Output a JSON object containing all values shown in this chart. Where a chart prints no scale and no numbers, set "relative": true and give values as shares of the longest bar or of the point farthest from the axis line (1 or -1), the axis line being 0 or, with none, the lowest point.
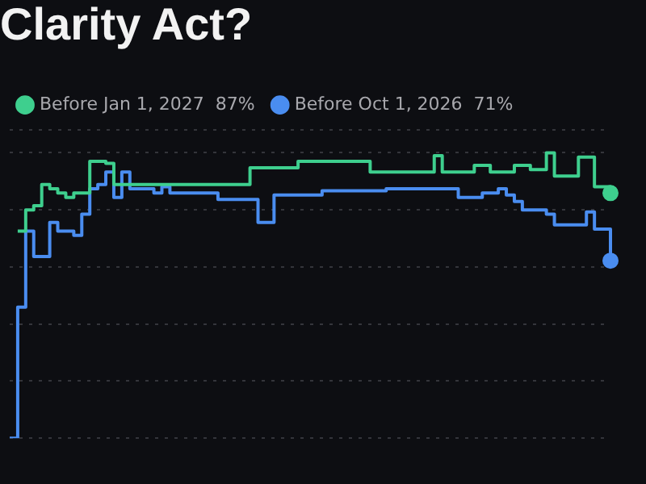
{
  "chart_data": {
    "type": "step",
    "title": "Clarity Act?",
    "relative": true,
    "categories": [
      null,
      null,
      null,
      null,
      null,
      null,
      null,
      null,
      null,
      null,
      null,
      null,
      null,
      null,
      null,
      null,
      null,
      null,
      null,
      null,
      null,
      null,
      null,
      null,
      null,
      null,
      null,
      null,
      null,
      null,
      null,
      null,
      null,
      null,
      null,
      null,
      null,
      null,
      null,
      null,
      null,
      null,
      null,
      null,
      null,
      null,
      null,
      null,
      null,
      null,
      null,
      null,
      null,
      null,
      null,
      null,
      null,
      null,
      null,
      null,
      null,
      null,
      null,
      null,
      null,
      null,
      null,
      null,
      null,
      null,
      null,
      null,
      null,
      null,
      null,
      null
    ],
    "series": [
      {
        "name": "Before Jan 1, 2027  87%",
        "color": "#3ecf8e",
        "values": [
          null,
          0.726,
          0.8,
          0.815,
          0.889,
          0.874,
          0.859,
          0.844,
          0.859,
          0.859,
          0.97,
          0.97,
          0.963,
          0.889,
          0.889,
          0.889,
          0.889,
          0.889,
          0.889,
          0.889,
          0.889,
          0.889,
          0.889,
          0.889,
          0.889,
          0.889,
          0.889,
          0.889,
          0.889,
          0.889,
          0.948,
          0.948,
          0.948,
          0.948,
          0.948,
          0.948,
          0.97,
          0.97,
          0.97,
          0.97,
          0.97,
          0.97,
          0.97,
          0.97,
          0.97,
          0.933,
          0.933,
          0.933,
          0.933,
          0.933,
          0.933,
          0.933,
          0.933,
          0.99,
          0.933,
          0.933,
          0.933,
          0.933,
          0.956,
          0.956,
          0.933,
          0.933,
          0.933,
          0.956,
          0.956,
          0.941,
          0.941,
          1,
          0.919,
          0.919,
          0.919,
          0.985,
          0.985,
          0.881,
          0.881,
          0.859
        ]
      },
      {
        "name": "Before Oct 1, 2026  71%",
        "color": "#4a8df0",
        "values": [
          0,
          0.459,
          0.726,
          0.637,
          0.637,
          0.756,
          0.726,
          0.726,
          0.711,
          0.785,
          0.874,
          0.889,
          0.933,
          0.844,
          0.933,
          0.874,
          0.874,
          0.874,
          0.859,
          0.881,
          0.859,
          0.859,
          0.859,
          0.859,
          0.859,
          0.859,
          0.837,
          0.837,
          0.837,
          0.837,
          0.837,
          0.756,
          0.756,
          0.852,
          0.852,
          0.852,
          0.852,
          0.852,
          0.852,
          0.867,
          0.867,
          0.867,
          0.867,
          0.867,
          0.867,
          0.867,
          0.867,
          0.874,
          0.874,
          0.874,
          0.874,
          0.874,
          0.874,
          0.874,
          0.874,
          0.874,
          0.844,
          0.844,
          0.844,
          0.859,
          0.859,
          0.874,
          0.852,
          0.83,
          0.8,
          0.8,
          0.8,
          0.785,
          0.748,
          0.748,
          0.748,
          0.748,
          0.793,
          0.733,
          0.733,
          0.622
        ]
      }
    ],
    "grid": "y",
    "legend": "top left"
  }
}
